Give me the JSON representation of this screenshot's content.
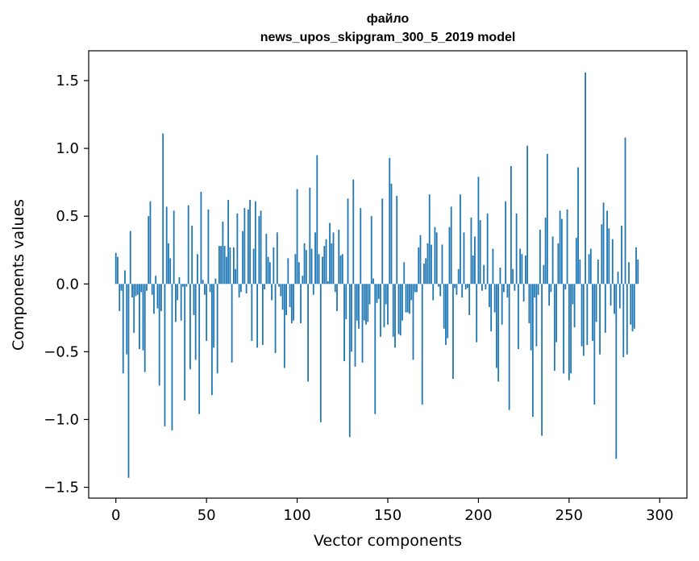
{
  "chart_data": {
    "type": "bar",
    "title": [
      "файло",
      "news_upos_skipgram_300_5_2019 model"
    ],
    "xlabel": "Vector components",
    "ylabel": "Components values",
    "xlim": [
      -15,
      315
    ],
    "ylim": [
      -1.58,
      1.72
    ],
    "xticks": [
      0,
      50,
      100,
      150,
      200,
      250,
      300
    ],
    "yticks": [
      -1.5,
      -1.0,
      -0.5,
      0.0,
      0.5,
      1.0,
      1.5
    ],
    "ytick_labels": [
      "−1.5",
      "−1.0",
      "−0.5",
      "0.0",
      "0.5",
      "1.0",
      "1.5"
    ],
    "grid": false,
    "bar_color": "#1f77b4",
    "values": [
      0.23,
      0.2,
      -0.2,
      -0.05,
      -0.66,
      0.1,
      -0.52,
      -1.43,
      0.39,
      -0.1,
      -0.36,
      -0.09,
      -0.08,
      -0.48,
      -0.06,
      -0.49,
      -0.65,
      -0.05,
      0.5,
      0.61,
      -0.08,
      -0.22,
      0.06,
      -0.18,
      -0.75,
      -0.2,
      1.11,
      -1.05,
      0.57,
      0.3,
      0.19,
      -1.08,
      0.54,
      -0.28,
      -0.12,
      0.05,
      -0.27,
      -0.02,
      -0.86,
      -0.02,
      0.58,
      -0.63,
      0.43,
      -0.23,
      -0.56,
      0.22,
      -0.96,
      0.68,
      0.03,
      -0.08,
      -0.42,
      0.55,
      -0.06,
      -0.82,
      -0.47,
      0.04,
      -0.66,
      0.28,
      0.28,
      0.46,
      0.28,
      0.2,
      0.62,
      0.27,
      -0.58,
      0.27,
      0.11,
      0.52,
      -0.1,
      -0.06,
      0.39,
      0.56,
      -0.07,
      0.55,
      0.62,
      -0.42,
      0.26,
      0.61,
      -0.47,
      0.5,
      0.54,
      -0.45,
      -0.04,
      0.37,
      0.2,
      0.16,
      -0.12,
      0.27,
      -0.51,
      0.38,
      -0.02,
      -0.09,
      -0.19,
      -0.62,
      -0.23,
      0.19,
      -0.17,
      -0.29,
      -0.27,
      0.22,
      0.7,
      0.16,
      -0.29,
      0.06,
      0.3,
      0.25,
      -0.72,
      0.71,
      0.26,
      -0.08,
      0.38,
      0.95,
      0.22,
      -1.02,
      0.2,
      0.28,
      0.33,
      0.02,
      0.45,
      0.3,
      0.38,
      -0.06,
      -0.2,
      0.4,
      0.21,
      0.22,
      -0.57,
      -0.26,
      0.63,
      -1.13,
      -0.5,
      0.77,
      -0.61,
      -0.27,
      -0.33,
      0.56,
      -0.58,
      -0.27,
      -0.3,
      -0.28,
      -0.15,
      0.5,
      0.04,
      -0.96,
      -0.14,
      -0.11,
      -0.39,
      0.63,
      -0.32,
      -0.15,
      -0.3,
      0.93,
      0.74,
      -0.39,
      -0.47,
      0.65,
      -0.37,
      -0.38,
      -0.27,
      0.16,
      -0.21,
      -0.21,
      -0.22,
      -0.12,
      -0.56,
      -0.06,
      -0.06,
      0.27,
      0.36,
      -0.89,
      0.15,
      0.19,
      0.3,
      0.66,
      0.29,
      -0.12,
      0.42,
      0.38,
      -0.02,
      -0.09,
      0.29,
      -0.33,
      -0.45,
      -0.4,
      0.42,
      0.57,
      -0.7,
      -0.03,
      -0.08,
      0.11,
      0.66,
      -0.1,
      0.38,
      -0.04,
      -0.03,
      -0.23,
      0.49,
      0.21,
      0.35,
      -0.43,
      0.79,
      0.47,
      -0.05,
      0.14,
      -0.04,
      0.52,
      -0.17,
      -0.35,
      0.26,
      -0.21,
      -0.62,
      -0.72,
      0.12,
      -0.3,
      -0.06,
      0.61,
      -0.1,
      -0.93,
      0.87,
      0.11,
      -0.05,
      0.52,
      -0.48,
      0.26,
      0.22,
      -0.13,
      0.21,
      1.02,
      -0.29,
      -0.49,
      -0.98,
      -0.1,
      -0.46,
      -0.08,
      0.4,
      -1.12,
      0.14,
      0.49,
      0.96,
      -0.16,
      -0.06,
      0.35,
      -0.64,
      -0.43,
      0.3,
      0.54,
      0.48,
      -0.66,
      -0.04,
      0.55,
      -0.71,
      -0.66,
      -0.15,
      -0.32,
      0.34,
      0.86,
      0.18,
      -0.46,
      -0.53,
      1.56,
      -0.45,
      0.22,
      0.26,
      -0.42,
      -0.89,
      -0.28,
      0.18,
      -0.52,
      0.44,
      0.6,
      -0.36,
      0.54,
      0.41,
      -0.16,
      0.33,
      -0.22,
      -1.29,
      0.09,
      -0.18,
      0.43,
      -0.54,
      1.08,
      -0.52,
      0.16,
      -0.3,
      -0.35,
      -0.33,
      0.27,
      0.18
    ]
  }
}
